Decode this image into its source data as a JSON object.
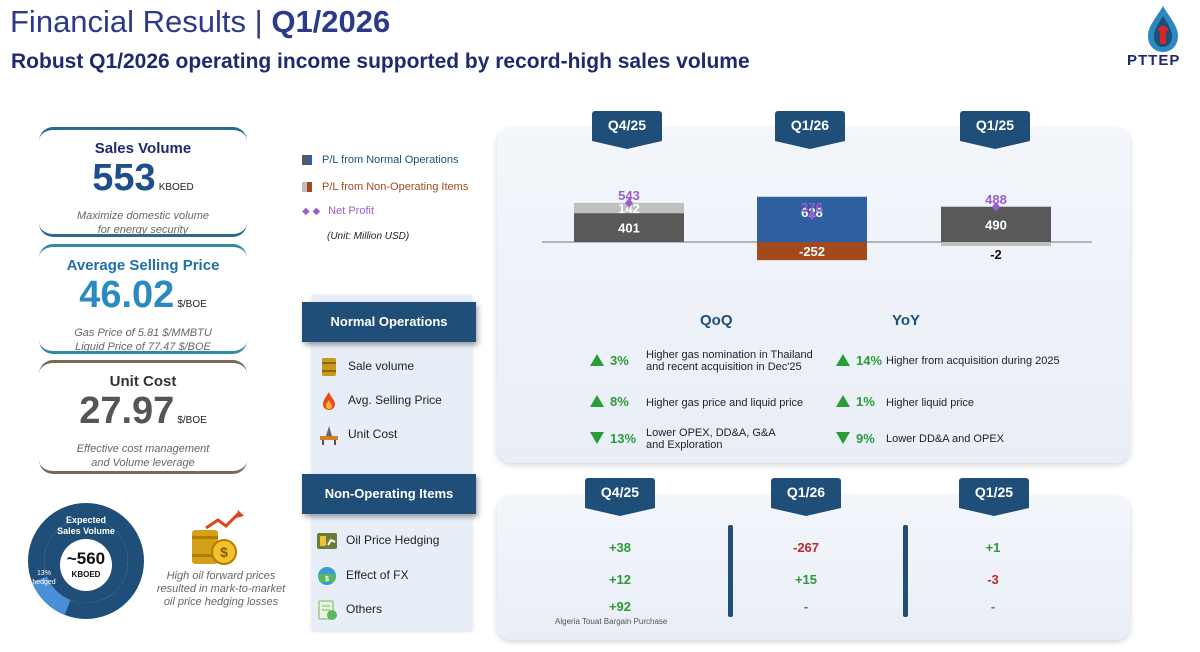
{
  "header": {
    "title_prefix": "Financial Results | ",
    "title_period": "Q1/2026",
    "subtitle": "Robust Q1/2026 operating income supported by record-high sales volume",
    "logo_text": "PTTEP"
  },
  "kpis": {
    "sales_volume": {
      "title": "Sales Volume",
      "value": "553",
      "unit": "KBOED",
      "note1": "Maximize domestic volume",
      "note2": "for energy security"
    },
    "avg_price": {
      "title": "Average Selling Price",
      "value": "46.02",
      "unit": "$/BOE",
      "note1": "Gas Price of 5.81 $/MMBTU",
      "note2": "Liquid Price of 77.47 $/BOE"
    },
    "unit_cost": {
      "title": "Unit Cost",
      "value": "27.97",
      "unit": "$/BOE",
      "note1": "Effective cost management",
      "note2": "and Volume leverage"
    }
  },
  "expected": {
    "label1": "Expected",
    "label2": "Sales Volume",
    "value": "~560",
    "unit": "KBOED",
    "hedged_pct": "13%",
    "hedged_label": "hedged",
    "hedged_fraction": 0.13,
    "note1": "High oil forward prices",
    "note2": "resulted in mark-to-market",
    "note3": "oil price hedging losses"
  },
  "legend": {
    "normal": "P/L from Normal Operations",
    "nonop": "P/L from Non-Operating Items",
    "net": "Net Profit",
    "unit": "(Unit: Million USD)"
  },
  "colors": {
    "normal_q126": "#2e5f9e",
    "normal_other": "#595959",
    "nonop_q126": "#a24a1e",
    "nonop_other": "#bfbfbf",
    "net": "#9a5fcf",
    "navy": "#1f4e79",
    "green": "#2a9a3a",
    "red": "#c0282a"
  },
  "chart_data": {
    "type": "bar",
    "categories": [
      "Q4/25",
      "Q1/26",
      "Q1/25"
    ],
    "series": [
      {
        "name": "P/L from Normal Operations",
        "values": [
          401,
          628,
          490
        ]
      },
      {
        "name": "P/L from Non-Operating Items",
        "values": [
          142,
          -252,
          -2
        ]
      },
      {
        "name": "Net Profit",
        "values": [
          543,
          376,
          488
        ]
      }
    ]
  },
  "normal_ops": {
    "header": "Normal Operations",
    "items": [
      {
        "label": "Sale volume",
        "icon": "oil-barrel-icon"
      },
      {
        "label": "Avg. Selling Price",
        "icon": "flame-icon"
      },
      {
        "label": "Unit Cost",
        "icon": "oil-platform-icon"
      }
    ]
  },
  "nonop_items": {
    "header": "Non-Operating Items",
    "items": [
      {
        "label": "Oil Price Hedging",
        "icon": "hedging-icon"
      },
      {
        "label": "Effect of FX",
        "icon": "fx-icon"
      },
      {
        "label": "Others",
        "icon": "others-icon"
      }
    ]
  },
  "qoq_yoy": {
    "qoq_title": "QoQ",
    "yoy_title": "YoY",
    "qoq": [
      {
        "dir": "up",
        "pct": "3%",
        "line1": "Higher gas nomination in Thailand",
        "line2": "and recent acquisition in Dec'25"
      },
      {
        "dir": "up",
        "pct": "8%",
        "line1": "Higher gas price and liquid price",
        "line2": ""
      },
      {
        "dir": "down",
        "pct": "13%",
        "line1": "Lower OPEX, DD&A, G&A",
        "line2": "and Exploration"
      }
    ],
    "yoy": [
      {
        "dir": "up",
        "pct": "14%",
        "line1": "Higher from acquisition during 2025"
      },
      {
        "dir": "up",
        "pct": "1%",
        "line1": "Higher liquid price"
      },
      {
        "dir": "down",
        "pct": "9%",
        "line1": "Lower DD&A and OPEX"
      }
    ]
  },
  "nonop_table": {
    "periods": [
      "Q4/25",
      "Q1/26",
      "Q1/25"
    ],
    "rows": [
      {
        "values": [
          "+38",
          "-267",
          "+1"
        ]
      },
      {
        "values": [
          "+12",
          "+15",
          "-3"
        ]
      },
      {
        "values": [
          "+92",
          "-",
          "-"
        ]
      }
    ],
    "footnote": "Algeria Touat Bargain Purchase"
  }
}
